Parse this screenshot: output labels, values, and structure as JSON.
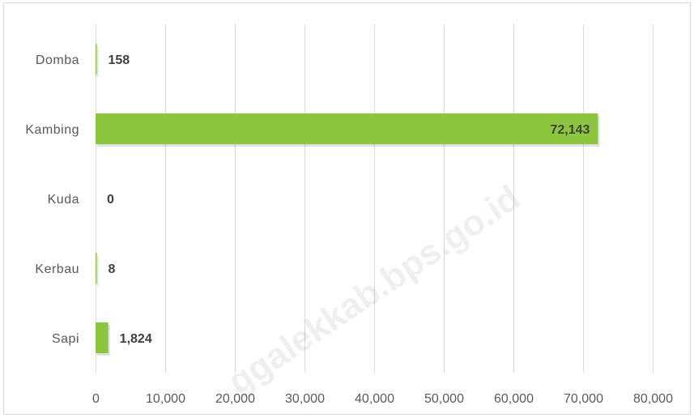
{
  "chart_data": {
    "type": "bar",
    "orientation": "horizontal",
    "categories": [
      "Domba",
      "Kambing",
      "Kuda",
      "Kerbau",
      "Sapi"
    ],
    "values": [
      158,
      72143,
      0,
      8,
      1824
    ],
    "data_labels": [
      "158",
      "72,143",
      "0",
      "8",
      "1,824"
    ],
    "xlim": [
      0,
      80000
    ],
    "x_ticks": [
      0,
      10000,
      20000,
      30000,
      40000,
      50000,
      60000,
      70000,
      80000
    ],
    "x_tick_labels": [
      "0",
      "10,000",
      "20,000",
      "30,000",
      "40,000",
      "50,000",
      "60,000",
      "70,000",
      "80,000"
    ],
    "grid": "vertical",
    "bar_color": "#8cc63f",
    "title": "",
    "xlabel": "",
    "ylabel": ""
  },
  "watermark": "ggalekkab.bps.go.id"
}
